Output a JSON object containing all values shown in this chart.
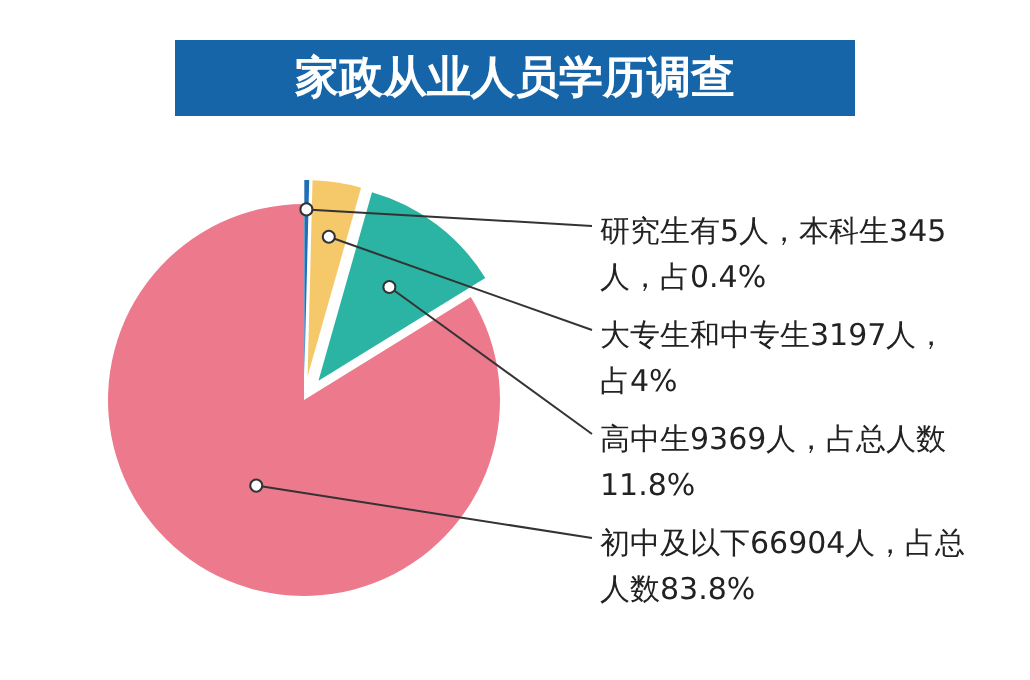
{
  "chart_data": {
    "type": "pie",
    "title": "家政从业人员学历调查",
    "categories": [
      "研究生有5人，本科生345人，占0.4%",
      "大专生和中专生3197人，占4%",
      "高中生9369人，占总人数11.8%",
      "初中及以下66904人，占总人数83.8%"
    ],
    "values": [
      0.4,
      4,
      11.8,
      83.8
    ],
    "colors": [
      "#1f6fb5",
      "#f5c96a",
      "#2bb3a3",
      "#ec7a8c"
    ],
    "legend": false
  }
}
